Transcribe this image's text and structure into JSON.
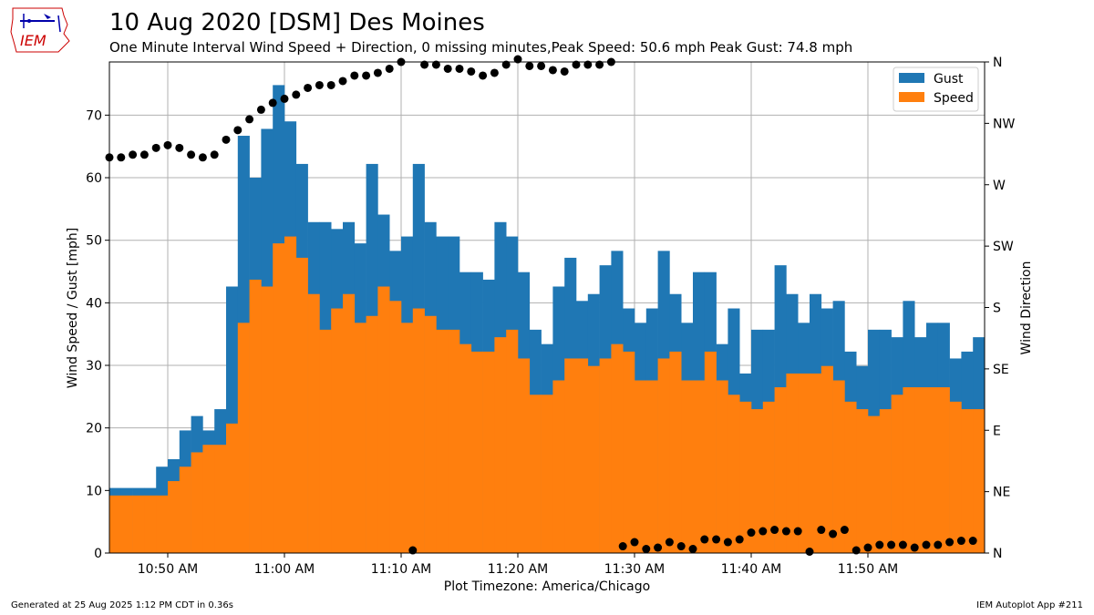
{
  "header": {
    "title": "10 Aug 2020 [DSM] Des Moines",
    "subtitle": "One Minute Interval Wind Speed + Direction, 0 missing minutes,Peak Speed: 50.6 mph Peak Gust: 74.8 mph"
  },
  "logo": {
    "text": "IEM",
    "color": "#cc0000",
    "icon": "iowa-state-outline-weather-instruments"
  },
  "footer": {
    "generated": "Generated at 25 Aug 2025 1:12 PM CDT in 0.36s",
    "app": "IEM Autoplot App #211"
  },
  "chart_data": {
    "type": "bar",
    "xlabel": "Plot Timezone: America/Chicago",
    "ylabel": "Wind Speed / Gust [mph]",
    "y2label": "Wind Direction",
    "x_ticks": [
      "10:50 AM",
      "11:00 AM",
      "11:10 AM",
      "11:20 AM",
      "11:30 AM",
      "11:40 AM",
      "11:50 AM"
    ],
    "x_tick_minutes": [
      50,
      60,
      70,
      80,
      90,
      100,
      110
    ],
    "minutes": [
      45,
      46,
      47,
      48,
      49,
      50,
      51,
      52,
      53,
      54,
      55,
      56,
      57,
      58,
      59,
      60,
      61,
      62,
      63,
      64,
      65,
      66,
      67,
      68,
      69,
      70,
      71,
      72,
      73,
      74,
      75,
      76,
      77,
      78,
      79,
      80,
      81,
      82,
      83,
      84,
      85,
      86,
      87,
      88,
      89,
      90,
      91,
      92,
      93,
      94,
      95,
      96,
      97,
      98,
      99,
      100,
      101,
      102,
      103,
      104,
      105,
      106,
      107,
      108,
      109,
      110,
      111,
      112,
      113,
      114,
      115,
      116,
      117,
      118,
      119
    ],
    "y_ticks": [
      0,
      10,
      20,
      30,
      40,
      50,
      60,
      70
    ],
    "ylim": [
      0,
      78.5
    ],
    "y2_ticks": [
      "N",
      "NE",
      "E",
      "SE",
      "S",
      "SW",
      "W",
      "NW",
      "N"
    ],
    "y2lim": [
      0,
      360
    ],
    "grid": true,
    "legend_position": "top-right",
    "series": [
      {
        "name": "Gust",
        "color": "#1f77b4",
        "values": [
          10.4,
          10.4,
          10.4,
          10.4,
          13.8,
          15.0,
          19.6,
          21.9,
          19.6,
          23.0,
          42.6,
          66.7,
          60.0,
          67.8,
          74.8,
          69.0,
          62.2,
          52.9,
          52.9,
          51.8,
          52.9,
          49.5,
          62.2,
          54.1,
          48.3,
          50.6,
          62.2,
          52.9,
          50.6,
          50.6,
          44.9,
          44.9,
          43.7,
          52.9,
          50.6,
          44.9,
          35.7,
          33.4,
          42.6,
          47.2,
          40.3,
          41.4,
          46.0,
          48.3,
          39.1,
          36.8,
          39.1,
          48.3,
          41.4,
          36.8,
          44.9,
          44.9,
          33.4,
          39.1,
          28.7,
          35.7,
          35.7,
          46.0,
          41.4,
          36.8,
          41.4,
          39.1,
          40.3,
          32.2,
          29.9,
          35.7,
          35.7,
          34.5,
          40.3,
          34.5,
          36.8,
          36.8,
          31.1,
          32.2,
          34.5
        ]
      },
      {
        "name": "Speed",
        "color": "#ff7f0e",
        "values": [
          9.2,
          9.2,
          9.2,
          9.2,
          9.2,
          11.5,
          13.8,
          16.1,
          17.3,
          17.3,
          20.7,
          36.8,
          43.7,
          42.6,
          49.5,
          50.6,
          47.2,
          41.4,
          35.7,
          39.1,
          41.4,
          36.8,
          37.9,
          42.6,
          40.3,
          36.8,
          39.1,
          37.9,
          35.7,
          35.7,
          33.4,
          32.2,
          32.2,
          34.5,
          35.7,
          31.1,
          25.3,
          25.3,
          27.6,
          31.1,
          31.1,
          29.9,
          31.1,
          33.4,
          32.2,
          27.6,
          27.6,
          31.1,
          32.2,
          27.6,
          27.6,
          32.2,
          27.6,
          25.3,
          24.2,
          23.0,
          24.2,
          26.5,
          28.7,
          28.7,
          28.7,
          29.9,
          27.6,
          24.2,
          23.0,
          21.9,
          23.0,
          25.3,
          26.5,
          26.5,
          26.5,
          26.5,
          24.2,
          23.0,
          23.0
        ]
      }
    ],
    "direction_points": [
      [
        45,
        290
      ],
      [
        46,
        290
      ],
      [
        47,
        292
      ],
      [
        48,
        292
      ],
      [
        49,
        297
      ],
      [
        50,
        299
      ],
      [
        51,
        297
      ],
      [
        52,
        292
      ],
      [
        53,
        290
      ],
      [
        54,
        292
      ],
      [
        55,
        303
      ],
      [
        56,
        310
      ],
      [
        57,
        318
      ],
      [
        58,
        325
      ],
      [
        59,
        330
      ],
      [
        60,
        333
      ],
      [
        61,
        336
      ],
      [
        62,
        341
      ],
      [
        63,
        343
      ],
      [
        64,
        343
      ],
      [
        65,
        346
      ],
      [
        66,
        350
      ],
      [
        67,
        350
      ],
      [
        68,
        352
      ],
      [
        69,
        355
      ],
      [
        70,
        360
      ],
      [
        71,
        2
      ],
      [
        72,
        358
      ],
      [
        73,
        358
      ],
      [
        74,
        355
      ],
      [
        75,
        355
      ],
      [
        76,
        353
      ],
      [
        77,
        350
      ],
      [
        78,
        352
      ],
      [
        79,
        358
      ],
      [
        80,
        362
      ],
      [
        81,
        357
      ],
      [
        82,
        357
      ],
      [
        83,
        354
      ],
      [
        84,
        353
      ],
      [
        85,
        358
      ],
      [
        86,
        358
      ],
      [
        87,
        358
      ],
      [
        88,
        360
      ],
      [
        89,
        5
      ],
      [
        90,
        8
      ],
      [
        91,
        3
      ],
      [
        92,
        4
      ],
      [
        93,
        8
      ],
      [
        94,
        5
      ],
      [
        95,
        3
      ],
      [
        96,
        10
      ],
      [
        97,
        10
      ],
      [
        98,
        8
      ],
      [
        99,
        10
      ],
      [
        100,
        15
      ],
      [
        101,
        16
      ],
      [
        102,
        17
      ],
      [
        103,
        16
      ],
      [
        104,
        16
      ],
      [
        105,
        1
      ],
      [
        106,
        17
      ],
      [
        107,
        14
      ],
      [
        108,
        17
      ],
      [
        109,
        2
      ],
      [
        110,
        4
      ],
      [
        111,
        6
      ],
      [
        112,
        6
      ],
      [
        113,
        6
      ],
      [
        114,
        4
      ],
      [
        115,
        6
      ],
      [
        116,
        6
      ],
      [
        117,
        8
      ],
      [
        118,
        9
      ],
      [
        119,
        9
      ]
    ]
  }
}
